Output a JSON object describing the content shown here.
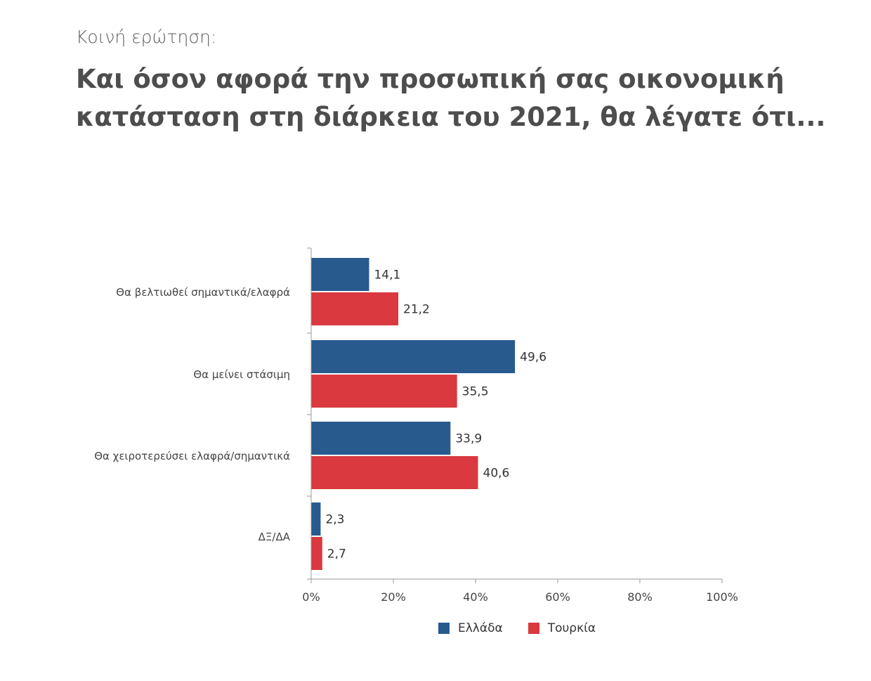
{
  "header": {
    "eyebrow": "Κοινή ερώτηση:",
    "title_line1": "Και όσον αφορά την προσωπική σας οικονομική",
    "title_line2": "κατάσταση στη διάρκεια του 2021, θα λέγατε ότι..."
  },
  "chart_data": {
    "type": "bar",
    "orientation": "horizontal",
    "categories": [
      "Θα βελτιωθεί σημαντικά/ελαφρά",
      "Θα μείνει στάσιμη",
      "Θα χειροτερεύσει ελαφρά/σημαντικά",
      "ΔΞ/ΔΑ"
    ],
    "series": [
      {
        "name": "Ελλάδα",
        "color": "#285a8e",
        "values": [
          14.1,
          49.6,
          33.9,
          2.3
        ],
        "labels": [
          "14,1",
          "49,6",
          "33,9",
          "2,3"
        ]
      },
      {
        "name": "Τουρκία",
        "color": "#d9393f",
        "values": [
          21.2,
          35.5,
          40.6,
          2.7
        ],
        "labels": [
          "21,2",
          "35,5",
          "40,6",
          "2,7"
        ]
      }
    ],
    "xlim": [
      0,
      100
    ],
    "xticks": [
      "0%",
      "20%",
      "40%",
      "60%",
      "80%",
      "100%"
    ],
    "grid": false,
    "legend_position": "bottom"
  }
}
